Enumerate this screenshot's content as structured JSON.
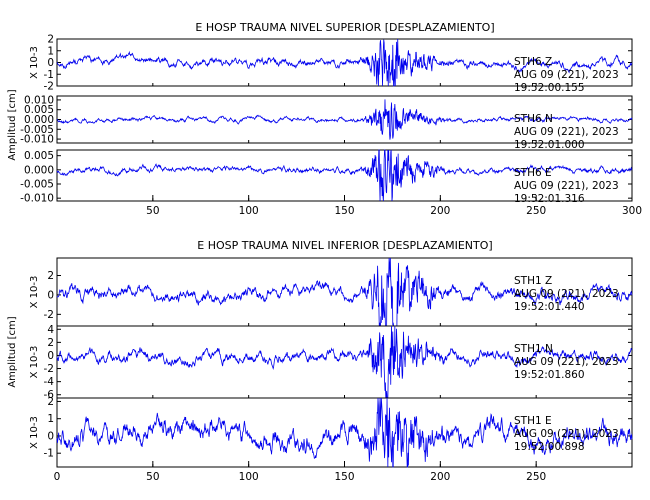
{
  "chart_data": [
    {
      "type": "line",
      "title": "E HOSP TRAUMA NIVEL SUPERIOR [DESPLAZAMIENTO]",
      "ylabel": "Amplitud [cm]",
      "xlim": [
        0,
        300
      ],
      "xticks": [
        50,
        100,
        150,
        200,
        250,
        300
      ],
      "panels": [
        {
          "unit_label": "X 10-3",
          "ylim": [
            -2,
            2
          ],
          "yticks": [
            -2,
            -1,
            0,
            1,
            2
          ],
          "annotation": [
            "STH6   Z",
            "AUG 09 (221), 2023",
            "19:52:00.155"
          ],
          "base_amp": 0.22,
          "event_amp": 1.9,
          "seed": 11,
          "drift": 0.05
        },
        {
          "unit_label": "",
          "ylim": [
            -0.012,
            0.012
          ],
          "yticks": [
            -0.01,
            -0.005,
            0.0,
            0.005,
            0.01
          ],
          "tick_labels": [
            "-0.010",
            "-0.005",
            "0.000",
            "0.005",
            "0.010"
          ],
          "annotation": [
            "STH6   N",
            "AUG 09 (221), 2023",
            "19:52:01.000"
          ],
          "base_amp": 0.0008,
          "event_amp": 0.0075,
          "seed": 23,
          "drift": 0.0
        },
        {
          "unit_label": "",
          "ylim": [
            -0.011,
            0.007
          ],
          "yticks": [
            -0.01,
            -0.005,
            0.0,
            0.005
          ],
          "tick_labels": [
            "-0.010",
            "-0.005",
            "0.000",
            "0.005"
          ],
          "annotation": [
            "STH6   E",
            "AUG 09 (221), 2023",
            "19:52:01.316"
          ],
          "base_amp": 0.0007,
          "event_amp": 0.008,
          "seed": 37,
          "drift": 0.0
        }
      ]
    },
    {
      "type": "line",
      "title": "E HOSP TRAUMA NIVEL INFERIOR [DESPLAZAMIENTO]",
      "ylabel": "Amplitud [cm]",
      "xlim": [
        0,
        300
      ],
      "xticks": [
        0,
        50,
        100,
        150,
        200,
        250
      ],
      "panels": [
        {
          "unit_label": "X 10-3",
          "ylim": [
            -3.2,
            3.8
          ],
          "yticks": [
            -2,
            0,
            2
          ],
          "annotation": [
            "STH1   Z",
            "AUG 09 (221), 2023",
            "19:52:01.440"
          ],
          "base_amp": 0.45,
          "event_amp": 3.3,
          "seed": 51,
          "drift": 0.1
        },
        {
          "unit_label": "X 10-3",
          "ylim": [
            -6.5,
            4.5
          ],
          "yticks": [
            -6,
            -4,
            -2,
            0,
            2,
            4
          ],
          "annotation": [
            "STH1   N",
            "AUG 09 (221), 2023",
            "19:52:01.860"
          ],
          "base_amp": 0.6,
          "event_amp": 4.5,
          "seed": 67,
          "drift": 0.0
        },
        {
          "unit_label": "X 10-3",
          "ylim": [
            -1.8,
            2.2
          ],
          "yticks": [
            -1,
            0,
            1,
            2
          ],
          "annotation": [
            "STH1   E",
            "AUG 09 (221), 2023",
            "19:52:00.898"
          ],
          "base_amp": 0.45,
          "event_amp": 1.8,
          "seed": 79,
          "drift": 0.15
        }
      ]
    }
  ]
}
